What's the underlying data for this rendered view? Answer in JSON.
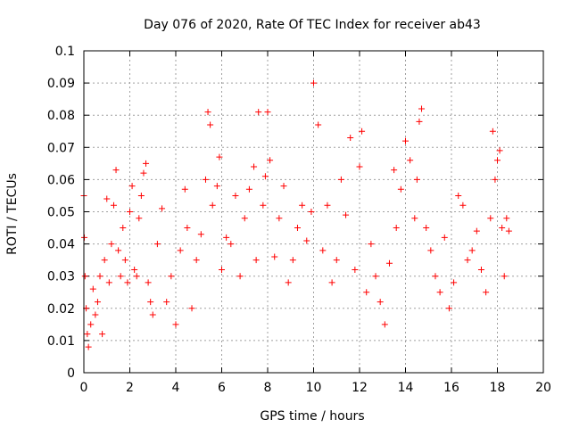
{
  "chart_data": {
    "type": "scatter",
    "title": "Day 076 of 2020, Rate Of TEC Index for receiver ab43",
    "xlabel": "GPS time / hours",
    "ylabel": "ROTI / TECUs",
    "xlim": [
      0,
      20
    ],
    "ylim": [
      0,
      0.1
    ],
    "x_ticks": [
      "0",
      "2",
      "4",
      "6",
      "8",
      "10",
      "12",
      "14",
      "16",
      "18",
      "20"
    ],
    "y_ticks": [
      "0",
      "0.01",
      "0.02",
      "0.03",
      "0.04",
      "0.05",
      "0.06",
      "0.07",
      "0.08",
      "0.09",
      "0.1"
    ],
    "grid": true,
    "marker": "+",
    "marker_color": "#ff0000",
    "series": [
      {
        "x": [
          0.0,
          0.02,
          0.05,
          0.1,
          0.15,
          0.2,
          0.3,
          0.4,
          0.5,
          0.6,
          0.7,
          0.8,
          0.9,
          1.0,
          1.1,
          1.2,
          1.3,
          1.4,
          1.5,
          1.6,
          1.7,
          1.8,
          1.9,
          2.0,
          2.1,
          2.2,
          2.3,
          2.4,
          2.5,
          2.6,
          2.7,
          2.8,
          2.9,
          3.0,
          3.2,
          3.4,
          3.6,
          3.8,
          4.0,
          4.2,
          4.4,
          4.5,
          4.7,
          4.9,
          5.1,
          5.3,
          5.4,
          5.5,
          5.6,
          5.8,
          5.9,
          6.0,
          6.2,
          6.4,
          6.6,
          6.8,
          7.0,
          7.2,
          7.4,
          7.5,
          7.6,
          7.8,
          7.9,
          8.0,
          8.1,
          8.3,
          8.5,
          8.7,
          8.9,
          9.1,
          9.3,
          9.5,
          9.7,
          9.9,
          10.0,
          10.2,
          10.4,
          10.6,
          10.8,
          11.0,
          11.2,
          11.4,
          11.6,
          11.8,
          12.0,
          12.1,
          12.3,
          12.5,
          12.7,
          12.9,
          13.1,
          13.3,
          13.5,
          13.6,
          13.8,
          14.0,
          14.2,
          14.4,
          14.5,
          14.6,
          14.7,
          14.9,
          15.1,
          15.3,
          15.5,
          15.7,
          15.9,
          16.1,
          16.3,
          16.5,
          16.7,
          16.9,
          17.1,
          17.3,
          17.5,
          17.7,
          17.8,
          17.9,
          18.0,
          18.1,
          18.2,
          18.3,
          18.4,
          18.5
        ],
        "y": [
          0.055,
          0.042,
          0.03,
          0.02,
          0.012,
          0.008,
          0.015,
          0.026,
          0.018,
          0.022,
          0.03,
          0.012,
          0.035,
          0.054,
          0.028,
          0.04,
          0.052,
          0.063,
          0.038,
          0.03,
          0.045,
          0.035,
          0.028,
          0.05,
          0.058,
          0.032,
          0.03,
          0.048,
          0.055,
          0.062,
          0.065,
          0.028,
          0.022,
          0.018,
          0.04,
          0.051,
          0.022,
          0.03,
          0.015,
          0.038,
          0.057,
          0.045,
          0.02,
          0.035,
          0.043,
          0.06,
          0.081,
          0.077,
          0.052,
          0.058,
          0.067,
          0.032,
          0.042,
          0.04,
          0.055,
          0.03,
          0.048,
          0.057,
          0.064,
          0.035,
          0.081,
          0.052,
          0.061,
          0.081,
          0.066,
          0.036,
          0.048,
          0.058,
          0.028,
          0.035,
          0.045,
          0.052,
          0.041,
          0.05,
          0.09,
          0.077,
          0.038,
          0.052,
          0.028,
          0.035,
          0.06,
          0.049,
          0.073,
          0.032,
          0.064,
          0.075,
          0.025,
          0.04,
          0.03,
          0.022,
          0.015,
          0.034,
          0.063,
          0.045,
          0.057,
          0.072,
          0.066,
          0.048,
          0.06,
          0.078,
          0.082,
          0.045,
          0.038,
          0.03,
          0.025,
          0.042,
          0.02,
          0.028,
          0.055,
          0.052,
          0.035,
          0.038,
          0.044,
          0.032,
          0.025,
          0.048,
          0.075,
          0.06,
          0.066,
          0.069,
          0.045,
          0.03,
          0.048,
          0.044
        ]
      }
    ]
  }
}
